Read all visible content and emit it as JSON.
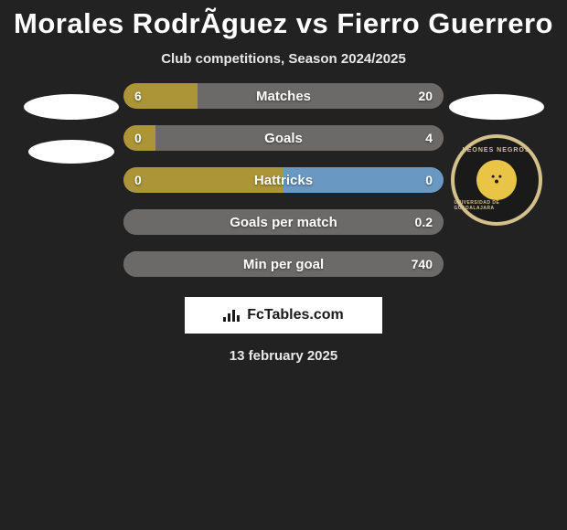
{
  "title": "Morales RodrÃ­guez vs Fierro Guerrero",
  "subtitle": "Club competitions, Season 2024/2025",
  "date": "13 february 2025",
  "footer_brand": "FcTables.com",
  "colors": {
    "accent": "#ab9536",
    "neutral_bar": "#6b6a68",
    "right_accent": "#6998c2",
    "background": "#222222",
    "text": "#ffffff"
  },
  "rows": [
    {
      "label": "Matches",
      "left": "6",
      "right": "20",
      "left_pct": 23,
      "right_pct": 77,
      "left_color": "#ab9536",
      "right_color": "#6b6a68"
    },
    {
      "label": "Goals",
      "left": "0",
      "right": "4",
      "left_pct": 10,
      "right_pct": 90,
      "left_color": "#ab9536",
      "right_color": "#6b6a68"
    },
    {
      "label": "Hattricks",
      "left": "0",
      "right": "0",
      "left_pct": 50,
      "right_pct": 50,
      "left_color": "#ab9536",
      "right_color": "#6998c2"
    },
    {
      "label": "Goals per match",
      "left": "",
      "right": "0.2",
      "left_pct": 0,
      "right_pct": 100,
      "left_color": "#ab9536",
      "right_color": "#6b6a68"
    },
    {
      "label": "Min per goal",
      "left": "",
      "right": "740",
      "left_pct": 0,
      "right_pct": 100,
      "left_color": "#ab9536",
      "right_color": "#6b6a68"
    }
  ],
  "left_player": {
    "placeholder_shapes": 2
  },
  "right_player": {
    "placeholder_shapes": 1,
    "club_badge": {
      "top_text": "LEONES NEGROS",
      "bottom_text": "UNIVERSIDAD DE GUADALAJARA"
    }
  }
}
